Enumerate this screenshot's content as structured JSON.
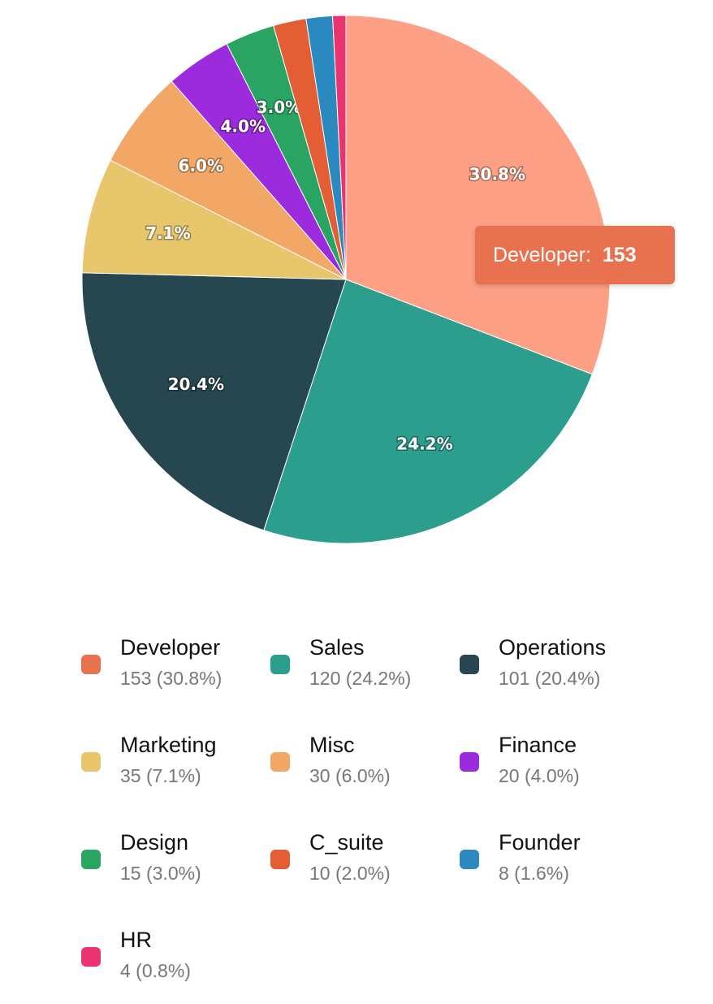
{
  "chart_data": {
    "type": "pie",
    "categories": [
      "Developer",
      "Sales",
      "Operations",
      "Marketing",
      "Misc",
      "Finance",
      "Design",
      "C_suite",
      "Founder",
      "HR"
    ],
    "values": [
      153,
      120,
      101,
      35,
      30,
      20,
      15,
      10,
      8,
      4
    ],
    "percent_labels": [
      "30.8%",
      "24.2%",
      "20.4%",
      "7.1%",
      "6.0%",
      "4.0%",
      "3.0%",
      "",
      "",
      ""
    ],
    "colors": [
      "#fda085",
      "#2b9e8e",
      "#26474f",
      "#e8c76c",
      "#f3a766",
      "#9b2bdc",
      "#2aa463",
      "#e35e35",
      "#2a8abf",
      "#ea336f"
    ],
    "legend_colors": [
      "#e8714f",
      "#2b9e8e",
      "#26474f",
      "#e8c76c",
      "#f3a766",
      "#9b2bdc",
      "#2aa463",
      "#e35e35",
      "#2a8abf",
      "#ea336f"
    ],
    "legend": [
      {
        "name": "Developer",
        "detail": "153 (30.8%)"
      },
      {
        "name": "Sales",
        "detail": "120 (24.2%)"
      },
      {
        "name": "Operations",
        "detail": "101 (20.4%)"
      },
      {
        "name": "Marketing",
        "detail": "35 (7.1%)"
      },
      {
        "name": "Misc",
        "detail": "30 (6.0%)"
      },
      {
        "name": "Finance",
        "detail": "20 (4.0%)"
      },
      {
        "name": "Design",
        "detail": "15 (3.0%)"
      },
      {
        "name": "C_suite",
        "detail": "10 (2.0%)"
      },
      {
        "name": "Founder",
        "detail": "8 (1.6%)"
      },
      {
        "name": "HR",
        "detail": "4 (0.8%)"
      }
    ],
    "legend_placement": "bottom",
    "tooltip": {
      "label": "Developer:",
      "value": "153",
      "color": "#e8714f"
    }
  }
}
